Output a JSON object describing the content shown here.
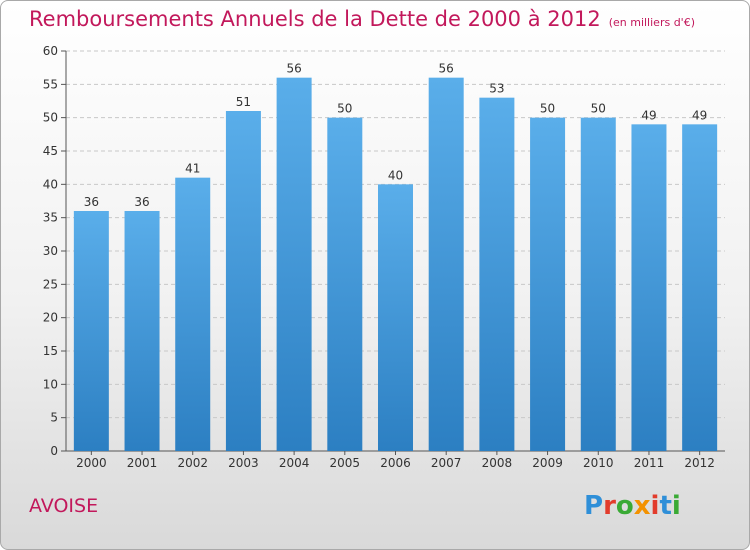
{
  "title": "Remboursements Annuels de la Dette de 2000 à 2012",
  "unit": "(en milliers d'€)",
  "commune": "AVOISE",
  "logo": "Proxiti",
  "colors": {
    "title": "#c2185b",
    "bar_top": "#5aaeea",
    "bar_bottom": "#2c7fc2",
    "grid": "#c8c8c8"
  },
  "chart_data": {
    "type": "bar",
    "title": "Remboursements Annuels de la Dette de 2000 à 2012",
    "xlabel": "",
    "ylabel": "",
    "ylim": [
      0,
      60
    ],
    "yticks": [
      0,
      5,
      10,
      15,
      20,
      25,
      30,
      35,
      40,
      45,
      50,
      55,
      60
    ],
    "grid": true,
    "categories": [
      "2000",
      "2001",
      "2002",
      "2003",
      "2004",
      "2005",
      "2006",
      "2007",
      "2008",
      "2009",
      "2010",
      "2011",
      "2012"
    ],
    "values": [
      36,
      36,
      41,
      51,
      56,
      50,
      40,
      56,
      53,
      50,
      50,
      49,
      49
    ]
  }
}
